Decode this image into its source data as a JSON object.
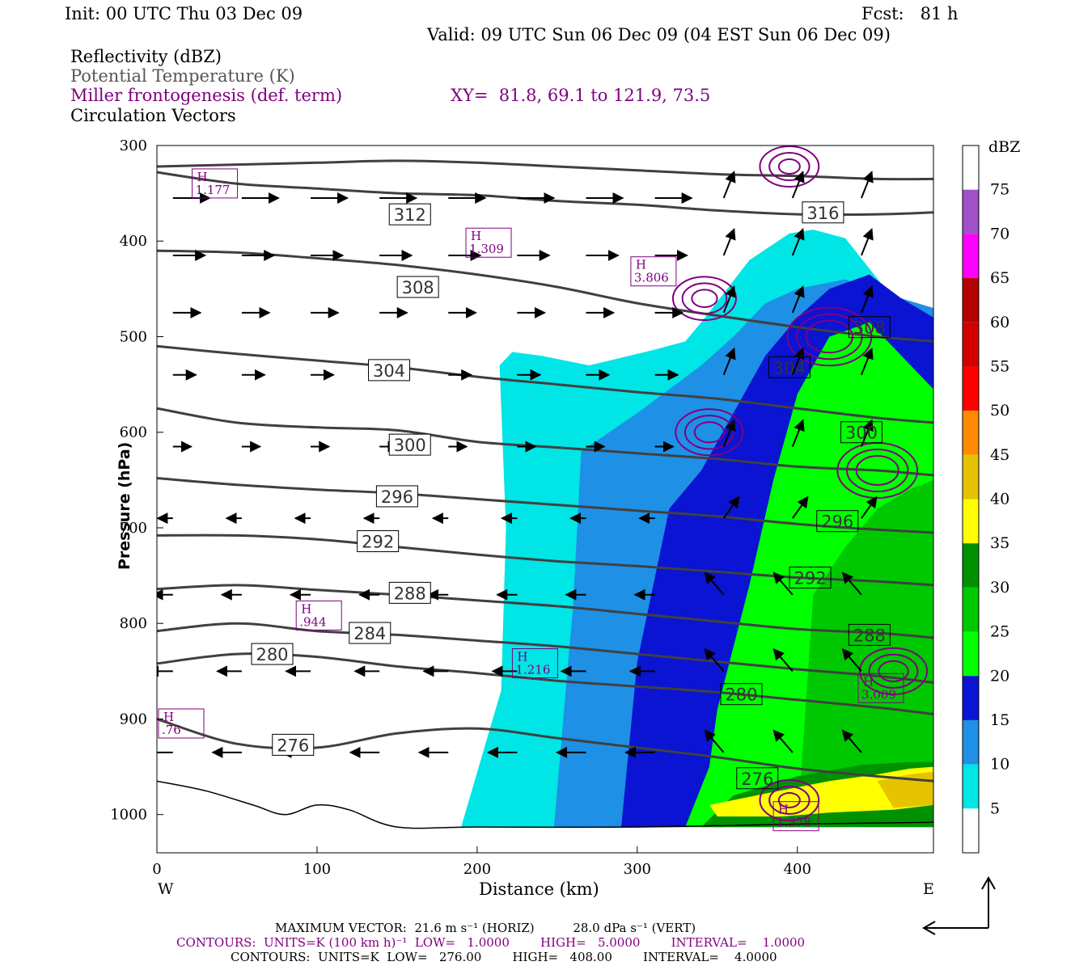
{
  "header": {
    "init": "Init: 00 UTC Thu 03 Dec 09",
    "fcst": "Fcst:   81 h",
    "valid": "Valid: 09 UTC Sun 06 Dec 09 (04 EST Sun 06 Dec 09)"
  },
  "fields": {
    "reflectivity": "Reflectivity (dBZ)",
    "theta": "Potential Temperature (K)",
    "frontogenesis": "Miller frontogenesis (def. term)",
    "xy": "XY=  81.8, 69.1 to 121.9, 73.5",
    "vectors": "Circulation Vectors"
  },
  "colors": {
    "theta_line": "#404040",
    "fronto_line": "#800080",
    "vector": "#000000",
    "dbz": [
      "#ffffff",
      "#00e5e5",
      "#1e90e6",
      "#0a14d2",
      "#00ff00",
      "#00c800",
      "#009100",
      "#ffff00",
      "#e6c300",
      "#ff8c00",
      "#ff0000",
      "#d20000",
      "#b40000",
      "#ff00ff",
      "#a050c8",
      "#ffffff"
    ]
  },
  "chart_data": {
    "type": "heatmap",
    "xlabel": "Distance (km)",
    "ylabel": "Pressure (hPa)",
    "xlim": [
      0,
      485
    ],
    "ylim": [
      1040,
      300
    ],
    "x_ticks": [
      "0",
      "100",
      "200",
      "300",
      "400"
    ],
    "y_ticks": [
      "300",
      "400",
      "500",
      "600",
      "700",
      "800",
      "900",
      "1000"
    ],
    "x_tick_values": [
      0,
      100,
      200,
      300,
      400
    ],
    "y_tick_values": [
      300,
      400,
      500,
      600,
      700,
      800,
      900,
      1000
    ],
    "west": "W",
    "east": "E",
    "colorbar": {
      "unit": "dBZ",
      "levels": [
        "75",
        "70",
        "65",
        "60",
        "55",
        "50",
        "45",
        "40",
        "35",
        "30",
        "25",
        "20",
        "15",
        "10",
        "5"
      ],
      "level_values": [
        75,
        70,
        65,
        60,
        55,
        50,
        45,
        40,
        35,
        30,
        25,
        20,
        15,
        10,
        5
      ]
    },
    "theta_contours": [
      {
        "label": "312",
        "p": [
          328,
          340,
          345,
          350,
          352,
          358,
          362,
          368,
          372,
          372,
          370
        ],
        "x": [
          0,
          50,
          100,
          150,
          200,
          250,
          300,
          350,
          400,
          450,
          485
        ],
        "label_x": 158,
        "label_p": 372
      },
      {
        "label": "316",
        "p": [
          322,
          320,
          318,
          316,
          318,
          322,
          326,
          330,
          332,
          335,
          335
        ],
        "x": [
          0,
          50,
          100,
          150,
          200,
          250,
          300,
          350,
          400,
          450,
          485
        ],
        "label_x": 416,
        "label_p": 370
      },
      {
        "label": "308",
        "p": [
          410,
          412,
          418,
          425,
          435,
          448,
          465,
          478,
          490,
          500,
          505
        ],
        "x": [
          0,
          50,
          100,
          150,
          200,
          250,
          300,
          350,
          400,
          450,
          485
        ],
        "label_x": 163,
        "label_p": 448
      },
      {
        "label": "304",
        "p": [
          510,
          518,
          525,
          532,
          542,
          550,
          558,
          565,
          575,
          585,
          590
        ],
        "x": [
          0,
          50,
          100,
          150,
          200,
          250,
          300,
          350,
          400,
          450,
          485
        ],
        "label_x": 145,
        "label_p": 535
      },
      {
        "label": "300",
        "p": [
          575,
          590,
          595,
          598,
          610,
          616,
          622,
          628,
          636,
          640,
          645
        ],
        "x": [
          0,
          50,
          100,
          150,
          200,
          250,
          300,
          350,
          400,
          450,
          485
        ],
        "label_x": 158,
        "label_p": 613
      },
      {
        "label": "296",
        "p": [
          648,
          655,
          660,
          664,
          670,
          676,
          682,
          688,
          696,
          702,
          705
        ],
        "x": [
          0,
          50,
          100,
          150,
          200,
          250,
          300,
          350,
          400,
          450,
          485
        ],
        "label_x": 150,
        "label_p": 667
      },
      {
        "label": "292",
        "p": [
          708,
          708,
          712,
          720,
          728,
          735,
          740,
          746,
          752,
          756,
          760
        ],
        "x": [
          0,
          50,
          100,
          150,
          200,
          250,
          300,
          350,
          400,
          450,
          485
        ],
        "label_x": 138,
        "label_p": 714
      },
      {
        "label": "288",
        "p": [
          764,
          760,
          765,
          770,
          776,
          782,
          790,
          798,
          806,
          810,
          815
        ],
        "x": [
          0,
          50,
          100,
          150,
          200,
          250,
          300,
          350,
          400,
          450,
          485
        ],
        "label_x": 158,
        "label_p": 768
      },
      {
        "label": "284",
        "p": [
          808,
          800,
          808,
          812,
          818,
          824,
          832,
          840,
          848,
          855,
          862
        ],
        "x": [
          0,
          50,
          100,
          150,
          200,
          250,
          300,
          350,
          400,
          450,
          485
        ],
        "label_x": 133,
        "label_p": 810
      },
      {
        "label": "280",
        "p": [
          842,
          832,
          835,
          845,
          852,
          860,
          866,
          872,
          880,
          888,
          895
        ],
        "x": [
          0,
          50,
          100,
          150,
          200,
          250,
          300,
          350,
          400,
          450,
          485
        ],
        "label_x": 72,
        "label_p": 832
      },
      {
        "label": "276",
        "p": [
          900,
          926,
          930,
          915,
          910,
          920,
          930,
          940,
          952,
          960,
          965
        ],
        "x": [
          0,
          50,
          100,
          150,
          200,
          250,
          300,
          350,
          400,
          450,
          485
        ],
        "label_x": 85,
        "label_p": 927
      }
    ],
    "theta_boxed_labels": [
      {
        "label": "304",
        "x": 395,
        "p": 532
      },
      {
        "label": "300",
        "x": 440,
        "p": 600
      },
      {
        "label": "296",
        "x": 425,
        "p": 693
      },
      {
        "label": "292",
        "x": 408,
        "p": 752
      },
      {
        "label": "288",
        "x": 445,
        "p": 812
      },
      {
        "label": "280",
        "x": 365,
        "p": 874
      },
      {
        "label": "276",
        "x": 375,
        "p": 962
      },
      {
        "label": "308",
        "x": 445,
        "p": 490
      }
    ],
    "ground": {
      "x": [
        0,
        30,
        60,
        80,
        100,
        120,
        150,
        200,
        300,
        400,
        485
      ],
      "p": [
        965,
        975,
        990,
        1000,
        990,
        995,
        1013,
        1013,
        1013,
        1010,
        1008
      ]
    },
    "fronto_highs": [
      {
        "label": "H",
        "value": "1.177",
        "x": 22,
        "p": 338
      },
      {
        "label": "H",
        "value": "1.309",
        "x": 193,
        "p": 400
      },
      {
        "label": "H",
        "value": "3.806",
        "x": 296,
        "p": 430
      },
      {
        "label": "H",
        "value": ".944",
        "x": 87,
        "p": 790
      },
      {
        "label": "H",
        "value": "1.216",
        "x": 222,
        "p": 840
      },
      {
        "label": "H",
        "value": "3.009",
        "x": 438,
        "p": 866
      },
      {
        "label": "H",
        "value": ".76",
        "x": 1,
        "p": 903
      },
      {
        "label": "H",
        "value": "1.378",
        "x": 385,
        "p": 1000
      }
    ],
    "fronto_rings": [
      {
        "x": 395,
        "p": 322,
        "r": 10
      },
      {
        "x": 342,
        "p": 460,
        "r": 12
      },
      {
        "x": 345,
        "p": 600,
        "r": 14
      },
      {
        "x": 420,
        "p": 500,
        "r": 22
      },
      {
        "x": 450,
        "p": 640,
        "r": 20
      },
      {
        "x": 460,
        "p": 850,
        "r": 14
      },
      {
        "x": 395,
        "p": 985,
        "r": 10
      }
    ],
    "reflectivity_region": [
      {
        "dbz": 5,
        "outline_x": [
          214,
          222,
          240,
          270,
          310,
          330,
          340,
          370,
          395,
          410,
          430,
          455,
          470,
          485,
          485,
          190,
          215,
          218,
          214
        ],
        "outline_p": [
          530,
          516,
          520,
          530,
          514,
          505,
          485,
          420,
          392,
          388,
          397,
          450,
          480,
          510,
          1013,
          1013,
          870,
          700,
          530
        ]
      },
      {
        "dbz": 10,
        "outline_x": [
          265,
          300,
          340,
          360,
          380,
          400,
          430,
          455,
          485,
          485,
          248,
          260,
          265
        ],
        "outline_p": [
          620,
          580,
          530,
          500,
          465,
          450,
          440,
          455,
          470,
          1013,
          1013,
          780,
          620
        ]
      },
      {
        "dbz": 15,
        "outline_x": [
          320,
          340,
          360,
          380,
          400,
          420,
          445,
          465,
          485,
          485,
          290,
          300,
          320
        ],
        "outline_p": [
          680,
          640,
          580,
          520,
          480,
          450,
          435,
          460,
          480,
          1013,
          1013,
          840,
          680
        ]
      },
      {
        "dbz": 20,
        "outline_x": [
          350,
          370,
          385,
          400,
          420,
          445,
          465,
          485,
          485,
          330,
          345,
          350
        ],
        "outline_p": [
          890,
          760,
          650,
          560,
          500,
          485,
          520,
          555,
          1013,
          1013,
          950,
          890
        ]
      },
      {
        "dbz": 25,
        "outline_x": [
          410,
          430,
          450,
          470,
          485,
          485,
          400,
          410
        ],
        "outline_p": [
          770,
          720,
          680,
          660,
          650,
          1013,
          1013,
          770
        ]
      },
      {
        "dbz": 30,
        "outline_x": [
          360,
          400,
          440,
          470,
          485,
          485,
          340,
          360
        ],
        "outline_p": [
          980,
          960,
          948,
          945,
          945,
          1013,
          1013,
          980
        ]
      },
      {
        "dbz": 35,
        "outline_x": [
          345,
          380,
          420,
          450,
          470,
          485,
          485,
          460,
          420,
          390,
          350,
          345
        ],
        "outline_p": [
          990,
          978,
          965,
          958,
          952,
          950,
          990,
          995,
          998,
          1002,
          1002,
          990
        ]
      },
      {
        "dbz": 40,
        "outline_x": [
          450,
          470,
          485,
          485,
          460,
          450
        ],
        "outline_p": [
          965,
          958,
          955,
          990,
          993,
          965
        ]
      }
    ],
    "maximum_vector": "MAXIMUM VECTOR:  21.6 m s⁻¹ (HORIZ)          28.0 dPa s⁻¹ (VERT)",
    "contours_purple": "CONTOURS:  UNITS=K (100 km h)⁻¹  LOW=   1.0000        HIGH=   5.0000        INTERVAL=    1.0000",
    "contours_black": "CONTOURS:  UNITS=K  LOW=   276.00        HIGH=   408.00        INTERVAL=    4.0000"
  }
}
